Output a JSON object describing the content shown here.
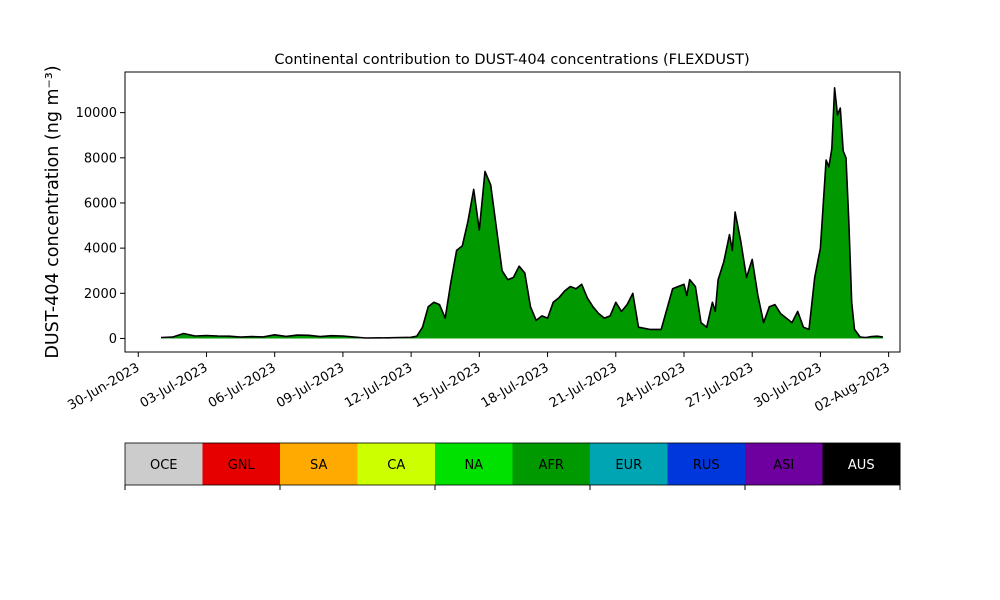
{
  "chart_data": {
    "type": "area",
    "title": "Continental contribution to DUST-404 concentrations (FLEXDUST)",
    "ylabel": "DUST-404 concentration (ng m⁻³)",
    "xlabel": "",
    "x_range": [
      "2023-06-29T10:00",
      "2023-08-02T12:00"
    ],
    "ylim": [
      -600,
      11800
    ],
    "grid": false,
    "legend_placement": "below chart as horizontal colorbar",
    "x_ticks": [
      "30-Jun-2023",
      "03-Jul-2023",
      "06-Jul-2023",
      "09-Jul-2023",
      "12-Jul-2023",
      "15-Jul-2023",
      "18-Jul-2023",
      "21-Jul-2023",
      "24-Jul-2023",
      "27-Jul-2023",
      "30-Jul-2023",
      "02-Aug-2023"
    ],
    "y_ticks": [
      0,
      2000,
      4000,
      6000,
      8000,
      10000
    ],
    "series": [
      {
        "name": "OCE",
        "color": "#cccccc"
      },
      {
        "name": "GNL",
        "color": "#e60000"
      },
      {
        "name": "SA",
        "color": "#ffaa00"
      },
      {
        "name": "CA",
        "color": "#ccff00"
      },
      {
        "name": "NA",
        "color": "#00e100",
        "points": [
          [
            "2023-07-01T00:00",
            30
          ],
          [
            "2023-07-05T00:00",
            50
          ],
          [
            "2023-07-09T00:00",
            30
          ],
          [
            "2023-07-12T00:00",
            30
          ],
          [
            "2023-07-20T00:00",
            30
          ],
          [
            "2023-07-27T00:00",
            30
          ],
          [
            "2023-07-30T00:00",
            40
          ],
          [
            "2023-08-01T18:00",
            30
          ]
        ]
      },
      {
        "name": "AFR",
        "color": "#009900",
        "points": [
          [
            "2023-07-01T00:00",
            40
          ],
          [
            "2023-07-01T12:00",
            60
          ],
          [
            "2023-07-02T00:00",
            220
          ],
          [
            "2023-07-02T12:00",
            110
          ],
          [
            "2023-07-03T00:00",
            130
          ],
          [
            "2023-07-03T12:00",
            110
          ],
          [
            "2023-07-04T00:00",
            100
          ],
          [
            "2023-07-04T12:00",
            60
          ],
          [
            "2023-07-05T00:00",
            80
          ],
          [
            "2023-07-05T12:00",
            70
          ],
          [
            "2023-07-06T00:00",
            160
          ],
          [
            "2023-07-06T12:00",
            90
          ],
          [
            "2023-07-07T00:00",
            150
          ],
          [
            "2023-07-07T12:00",
            140
          ],
          [
            "2023-07-08T00:00",
            80
          ],
          [
            "2023-07-08T12:00",
            120
          ],
          [
            "2023-07-09T00:00",
            110
          ],
          [
            "2023-07-09T12:00",
            60
          ],
          [
            "2023-07-10T00:00",
            20
          ],
          [
            "2023-07-11T00:00",
            30
          ],
          [
            "2023-07-11T12:00",
            40
          ],
          [
            "2023-07-12T00:00",
            50
          ],
          [
            "2023-07-12T06:00",
            100
          ],
          [
            "2023-07-12T12:00",
            500
          ],
          [
            "2023-07-12T18:00",
            1400
          ],
          [
            "2023-07-13T00:00",
            1600
          ],
          [
            "2023-07-13T06:00",
            1500
          ],
          [
            "2023-07-13T12:00",
            900
          ],
          [
            "2023-07-13T18:00",
            2500
          ],
          [
            "2023-07-14T00:00",
            3900
          ],
          [
            "2023-07-14T06:00",
            4100
          ],
          [
            "2023-07-14T12:00",
            5200
          ],
          [
            "2023-07-14T18:00",
            6600
          ],
          [
            "2023-07-15T00:00",
            4800
          ],
          [
            "2023-07-15T06:00",
            7400
          ],
          [
            "2023-07-15T12:00",
            6800
          ],
          [
            "2023-07-15T18:00",
            4900
          ],
          [
            "2023-07-16T00:00",
            3000
          ],
          [
            "2023-07-16T06:00",
            2600
          ],
          [
            "2023-07-16T12:00",
            2700
          ],
          [
            "2023-07-16T18:00",
            3200
          ],
          [
            "2023-07-17T00:00",
            2900
          ],
          [
            "2023-07-17T06:00",
            1400
          ],
          [
            "2023-07-17T12:00",
            800
          ],
          [
            "2023-07-17T18:00",
            1000
          ],
          [
            "2023-07-18T00:00",
            900
          ],
          [
            "2023-07-18T06:00",
            1600
          ],
          [
            "2023-07-18T12:00",
            1800
          ],
          [
            "2023-07-18T18:00",
            2100
          ],
          [
            "2023-07-19T00:00",
            2300
          ],
          [
            "2023-07-19T06:00",
            2200
          ],
          [
            "2023-07-19T12:00",
            2400
          ],
          [
            "2023-07-19T18:00",
            1800
          ],
          [
            "2023-07-20T00:00",
            1400
          ],
          [
            "2023-07-20T06:00",
            1100
          ],
          [
            "2023-07-20T12:00",
            900
          ],
          [
            "2023-07-20T18:00",
            1000
          ],
          [
            "2023-07-21T00:00",
            1600
          ],
          [
            "2023-07-21T06:00",
            1200
          ],
          [
            "2023-07-21T12:00",
            1500
          ],
          [
            "2023-07-21T18:00",
            2000
          ],
          [
            "2023-07-22T00:00",
            500
          ],
          [
            "2023-07-22T12:00",
            400
          ],
          [
            "2023-07-23T00:00",
            400
          ],
          [
            "2023-07-23T12:00",
            2200
          ],
          [
            "2023-07-23T18:00",
            2300
          ],
          [
            "2023-07-24T00:00",
            2400
          ],
          [
            "2023-07-24T03:00",
            1900
          ],
          [
            "2023-07-24T06:00",
            2600
          ],
          [
            "2023-07-24T12:00",
            2300
          ],
          [
            "2023-07-24T18:00",
            700
          ],
          [
            "2023-07-25T00:00",
            500
          ],
          [
            "2023-07-25T06:00",
            1600
          ],
          [
            "2023-07-25T09:00",
            1200
          ],
          [
            "2023-07-25T12:00",
            2600
          ],
          [
            "2023-07-25T18:00",
            3400
          ],
          [
            "2023-07-26T00:00",
            4600
          ],
          [
            "2023-07-26T03:00",
            3900
          ],
          [
            "2023-07-26T06:00",
            5600
          ],
          [
            "2023-07-26T12:00",
            4300
          ],
          [
            "2023-07-26T18:00",
            2700
          ],
          [
            "2023-07-27T00:00",
            3500
          ],
          [
            "2023-07-27T06:00",
            1900
          ],
          [
            "2023-07-27T12:00",
            700
          ],
          [
            "2023-07-27T18:00",
            1400
          ],
          [
            "2023-07-28T00:00",
            1500
          ],
          [
            "2023-07-28T06:00",
            1100
          ],
          [
            "2023-07-28T12:00",
            900
          ],
          [
            "2023-07-28T18:00",
            700
          ],
          [
            "2023-07-29T00:00",
            1200
          ],
          [
            "2023-07-29T06:00",
            500
          ],
          [
            "2023-07-29T12:00",
            400
          ],
          [
            "2023-07-29T18:00",
            2700
          ],
          [
            "2023-07-30T00:00",
            4000
          ],
          [
            "2023-07-30T06:00",
            7900
          ],
          [
            "2023-07-30T09:00",
            7600
          ],
          [
            "2023-07-30T12:00",
            8400
          ],
          [
            "2023-07-30T15:00",
            11100
          ],
          [
            "2023-07-30T18:00",
            9900
          ],
          [
            "2023-07-30T21:00",
            10200
          ],
          [
            "2023-07-31T00:00",
            8300
          ],
          [
            "2023-07-31T03:00",
            8000
          ],
          [
            "2023-07-31T06:00",
            5200
          ],
          [
            "2023-07-31T09:00",
            1600
          ],
          [
            "2023-07-31T12:00",
            400
          ],
          [
            "2023-07-31T18:00",
            60
          ],
          [
            "2023-08-01T00:00",
            40
          ],
          [
            "2023-08-01T06:00",
            80
          ],
          [
            "2023-08-01T12:00",
            100
          ],
          [
            "2023-08-01T18:00",
            60
          ]
        ]
      },
      {
        "name": "EUR",
        "color": "#00a5b4"
      },
      {
        "name": "RUS",
        "color": "#0037dc"
      },
      {
        "name": "ASI",
        "color": "#6e00a0"
      },
      {
        "name": "AUS",
        "color": "#000000"
      }
    ]
  }
}
